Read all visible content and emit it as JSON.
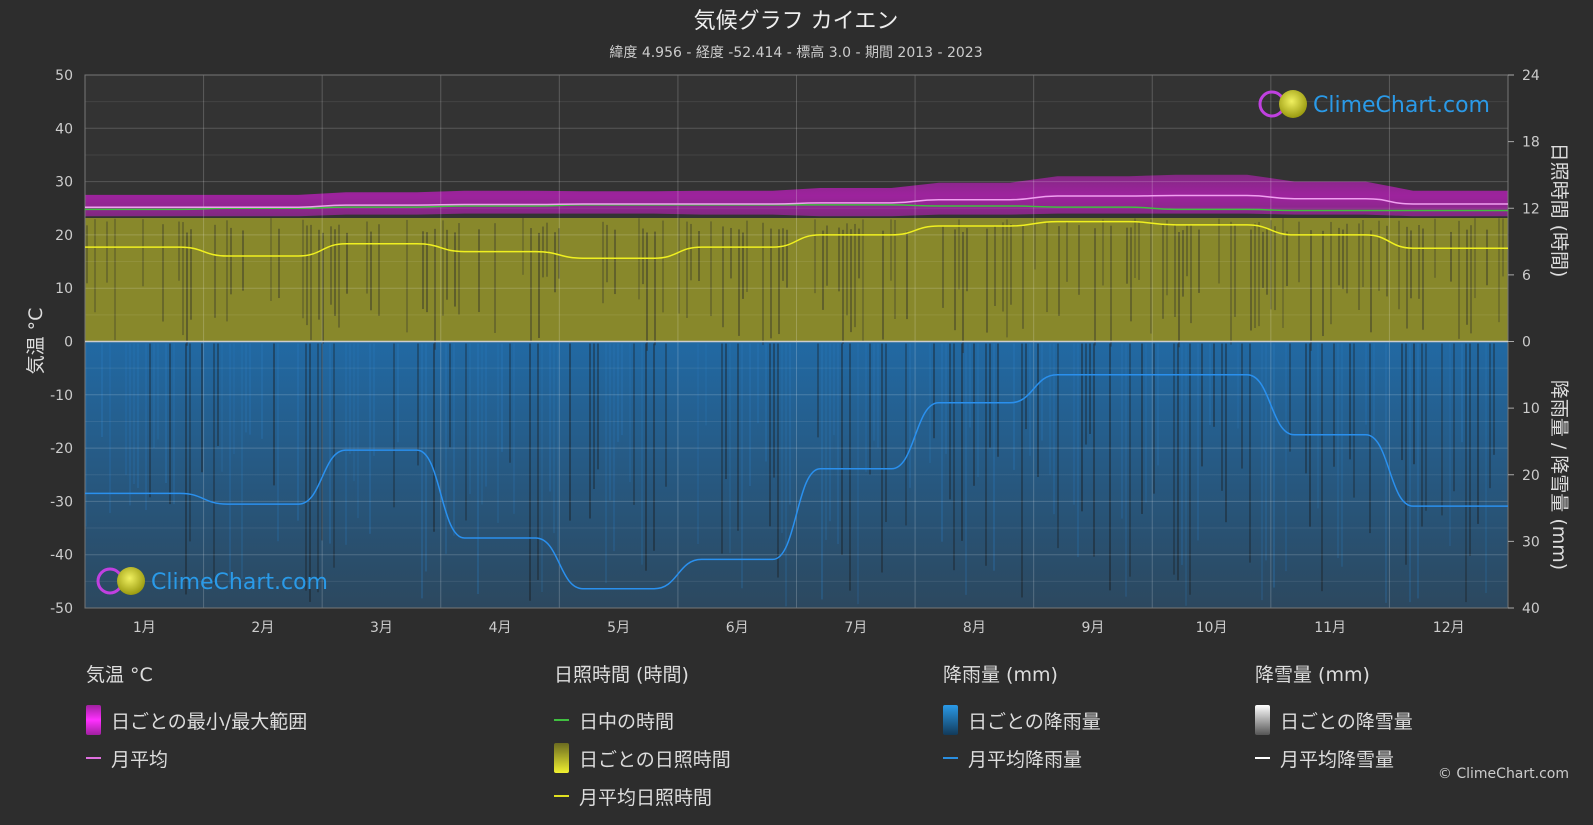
{
  "header": {
    "title": "気候グラフ カイエン",
    "subtitle": "緯度 4.956 - 経度 -52.414 - 標高 3.0 - 期間 2013 - 2023"
  },
  "axes": {
    "left_label": "気温 °C",
    "right_top_label": "日照時間 (時間)",
    "right_bottom_label": "降雨量 / 降雪量 (mm)",
    "left_ticks": [
      "50",
      "40",
      "30",
      "20",
      "10",
      "0",
      "-10",
      "-20",
      "-30",
      "-40",
      "-50"
    ],
    "right_top_ticks": [
      "24",
      "18",
      "12",
      "6",
      "0"
    ],
    "right_bottom_ticks": [
      "10",
      "20",
      "30",
      "40"
    ]
  },
  "watermark": {
    "text": "ClimeChart.com"
  },
  "chart_data": {
    "type": "line",
    "categories": [
      "1月",
      "2月",
      "3月",
      "4月",
      "5月",
      "6月",
      "7月",
      "8月",
      "9月",
      "10月",
      "11月",
      "12月"
    ],
    "temperature_ylim": [
      -50,
      50
    ],
    "sunshine_ylim": [
      0,
      24
    ],
    "precip_ylim": [
      0,
      40
    ],
    "grid": true,
    "series": [
      {
        "name": "日ごとの最小/最大範囲",
        "unit": "°C",
        "min": [
          23.5,
          23.5,
          23.8,
          24.0,
          24.0,
          23.8,
          23.5,
          23.8,
          24.0,
          24.0,
          23.8,
          23.5
        ],
        "max": [
          27.5,
          27.5,
          28.0,
          28.3,
          28.2,
          28.3,
          28.8,
          29.8,
          31.0,
          31.3,
          30.0,
          28.3
        ]
      },
      {
        "name": "月平均",
        "unit": "°C",
        "values": [
          25.2,
          25.2,
          25.6,
          25.7,
          25.8,
          25.8,
          26.0,
          26.6,
          27.3,
          27.4,
          26.8,
          25.8
        ]
      },
      {
        "name": "日中の時間",
        "unit": "時間",
        "values": [
          11.9,
          12.0,
          12.1,
          12.2,
          12.3,
          12.3,
          12.3,
          12.2,
          12.1,
          11.9,
          11.8,
          11.8
        ]
      },
      {
        "name": "月平均日照時間",
        "unit": "時間",
        "values": [
          8.5,
          7.7,
          8.8,
          8.1,
          7.5,
          8.5,
          9.6,
          10.4,
          10.8,
          10.5,
          9.6,
          8.4
        ]
      },
      {
        "name": "月平均降雨量",
        "unit": "mm",
        "values": [
          22.8,
          24.4,
          16.3,
          29.5,
          37.1,
          32.7,
          19.1,
          9.2,
          5.0,
          5.0,
          14.0,
          24.7
        ]
      },
      {
        "name": "月平均降雪量",
        "unit": "mm",
        "values": [
          0,
          0,
          0,
          0,
          0,
          0,
          0,
          0,
          0,
          0,
          0,
          0
        ]
      }
    ]
  },
  "legend": {
    "groups": [
      {
        "title": "気温 °C",
        "items": [
          {
            "label": "日ごとの最小/最大範囲",
            "type": "bar",
            "color": "#e020e0"
          },
          {
            "label": "月平均",
            "type": "line",
            "color": "#e070e0"
          }
        ]
      },
      {
        "title": "日照時間 (時間)",
        "items": [
          {
            "label": "日中の時間",
            "type": "line",
            "color": "#40c040"
          },
          {
            "label": "日ごとの日照時間",
            "type": "bar",
            "color": "#d8d830"
          },
          {
            "label": "月平均日照時間",
            "type": "line",
            "color": "#e0e020"
          }
        ]
      },
      {
        "title": "降雨量 (mm)",
        "items": [
          {
            "label": "日ごとの降雨量",
            "type": "bar",
            "color": "#2a8ee0"
          },
          {
            "label": "月平均降雨量",
            "type": "line",
            "color": "#2a8ee0"
          }
        ]
      },
      {
        "title": "降雪量 (mm)",
        "items": [
          {
            "label": "日ごとの降雪量",
            "type": "bar",
            "color": "#e8e8e8"
          },
          {
            "label": "月平均降雪量",
            "type": "line",
            "color": "#ffffff"
          }
        ]
      }
    ]
  },
  "footer": {
    "copyright": "© ClimeChart.com"
  }
}
